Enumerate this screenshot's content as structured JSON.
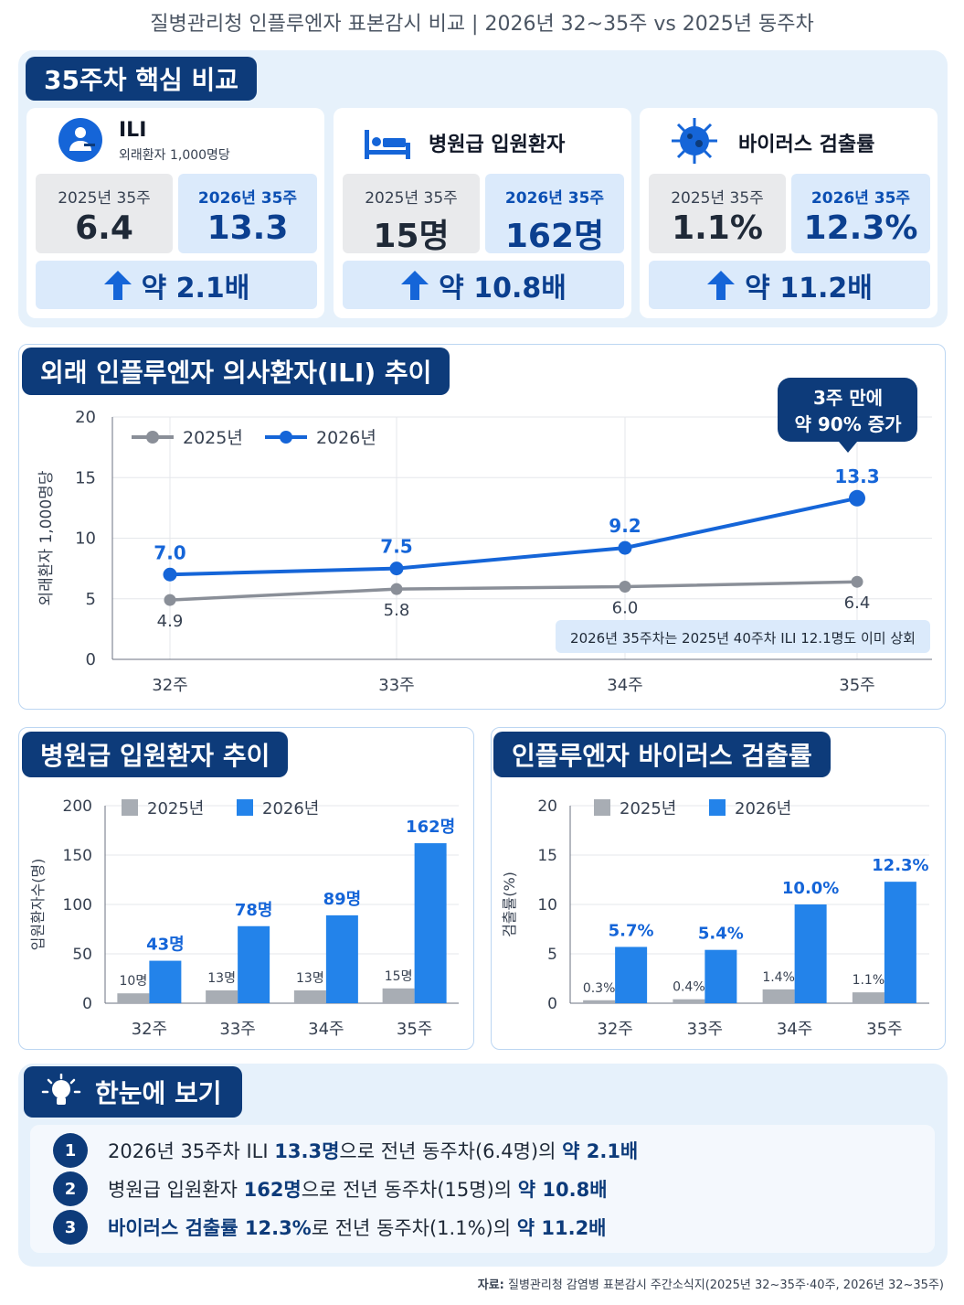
{
  "header": {
    "title": "질병관리청 인플루엔자 표본감시 비교 | 2026년 32~35주 vs 2025년 동주차"
  },
  "kpi": {
    "section_title": "35주차 핵심 비교",
    "cards": [
      {
        "title": "ILI",
        "sub": "외래환자 1,000명당",
        "left_label": "2025년 35주",
        "left_value": "6.4",
        "right_label": "2026년 35주",
        "right_value": "13.3",
        "ratio": "약 2.1배",
        "icon": "patient-icon"
      },
      {
        "title": "병원급 입원환자",
        "sub": "",
        "left_label": "2025년 35주",
        "left_value": "15명",
        "right_label": "2026년 35주",
        "right_value": "162명",
        "ratio": "약 10.8배",
        "icon": "hospital-bed-icon"
      },
      {
        "title": "바이러스 검출률",
        "sub": "",
        "left_label": "2025년 35주",
        "left_value": "1.1%",
        "right_label": "2026년 35주",
        "right_value": "12.3%",
        "ratio": "약 11.2배",
        "icon": "virus-icon"
      }
    ]
  },
  "ili": {
    "section_title": "외래 인플루엔자 의사환자(ILI) 추이",
    "callout": [
      "3주 만에",
      "약 90% 증가"
    ],
    "note": "2026년 35주차는 2025년 40주차 ILI 12.1명도 이미 상회"
  },
  "hosp": {
    "section_title": "병원급 입원환자 추이"
  },
  "virus": {
    "section_title": "인플루엔자 바이러스 검출률"
  },
  "summary": {
    "section_title": "한눈에 보기",
    "items": [
      {
        "n": "1",
        "pre": "2026년 35주차 ILI ",
        "b1": "13.3명",
        "mid": "으로 전년 동주차(6.4명)의 ",
        "b2": "약 2.1배"
      },
      {
        "n": "2",
        "pre": "병원급 입원환자 ",
        "b1": "162명",
        "mid": "으로 전년 동주차(15명)의 ",
        "b2": "약 10.8배"
      },
      {
        "n": "3",
        "pre": "",
        "b1": "바이러스 검출률 12.3%",
        "mid": "로 전년 동주차(1.1%)의 ",
        "b2": "약 11.2배"
      }
    ]
  },
  "source": {
    "label": "자료:",
    "text": "질병관리청 감염병 표본감시 주간소식지(2025년 32~35주·40주, 2026년 32~35주)"
  },
  "colors": {
    "s2025": "#8a8f98",
    "s2026": "#1565d8",
    "navy": "#0d3b7a"
  },
  "chart_data": [
    {
      "type": "line",
      "categories": [
        "32주",
        "33주",
        "34주",
        "35주"
      ],
      "ylabel": "외래환자 1,000명당",
      "ylim": [
        0,
        20
      ],
      "yticks": [
        0,
        5,
        10,
        15,
        20
      ],
      "legend": "top-left",
      "series": [
        {
          "name": "2025년",
          "values": [
            4.9,
            5.8,
            6.0,
            6.4
          ]
        },
        {
          "name": "2026년",
          "values": [
            7.0,
            7.5,
            9.2,
            13.3
          ]
        }
      ]
    },
    {
      "type": "bar",
      "categories": [
        "32주",
        "33주",
        "34주",
        "35주"
      ],
      "ylabel": "입원환자수(명)",
      "ylim": [
        0,
        200
      ],
      "yticks": [
        0,
        50,
        100,
        150,
        200
      ],
      "legend": "top-left",
      "series": [
        {
          "name": "2025년",
          "values": [
            10,
            13,
            13,
            15
          ],
          "labels": [
            "10명",
            "13명",
            "13명",
            "15명"
          ]
        },
        {
          "name": "2026년",
          "values": [
            43,
            78,
            89,
            162
          ],
          "labels": [
            "43명",
            "78명",
            "89명",
            "162명"
          ]
        }
      ]
    },
    {
      "type": "bar",
      "categories": [
        "32주",
        "33주",
        "34주",
        "35주"
      ],
      "ylabel": "검출률(%)",
      "ylim": [
        0,
        20
      ],
      "yticks": [
        0,
        5,
        10,
        15,
        20
      ],
      "legend": "top-left",
      "series": [
        {
          "name": "2025년",
          "values": [
            0.3,
            0.4,
            1.4,
            1.1
          ],
          "labels": [
            "0.3%",
            "0.4%",
            "1.4%",
            "1.1%"
          ]
        },
        {
          "name": "2026년",
          "values": [
            5.7,
            5.4,
            10.0,
            12.3
          ],
          "labels": [
            "5.7%",
            "5.4%",
            "10.0%",
            "12.3%"
          ]
        }
      ]
    }
  ]
}
